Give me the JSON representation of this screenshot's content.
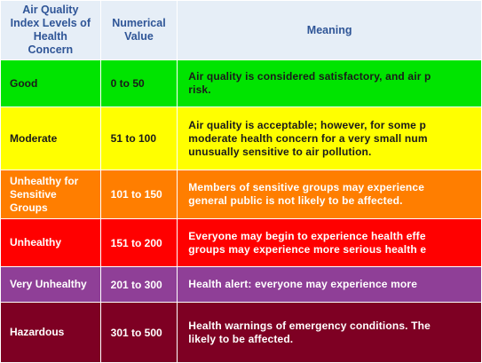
{
  "table": {
    "headers": {
      "level": "Air Quality Index Levels of Health Concern",
      "value": "Numerical Value",
      "meaning": "Meaning"
    },
    "rows": [
      {
        "level": "Good",
        "value": "0 to 50",
        "meaning": [
          "Air quality is considered satisfactory, and air p",
          "risk."
        ],
        "bg": "#00e400",
        "fg": "#1a1a1a"
      },
      {
        "level": "Moderate",
        "value": "51 to 100",
        "meaning": [
          "Air quality is acceptable; however, for some p",
          "moderate health concern for a very small num",
          "unusually sensitive to air pollution."
        ],
        "bg": "#ffff00",
        "fg": "#1a1a1a"
      },
      {
        "level": "Unhealthy for Sensitive Groups",
        "value": "101 to 150",
        "meaning": [
          "Members of sensitive groups may experience",
          "general public is not likely to be affected."
        ],
        "bg": "#ff7e00",
        "fg": "#ffffff"
      },
      {
        "level": "Unhealthy",
        "value": "151 to 200",
        "meaning": [
          "Everyone may begin to experience health effe",
          "groups may experience more serious health e"
        ],
        "bg": "#ff0000",
        "fg": "#ffffff"
      },
      {
        "level": "Very Unhealthy",
        "value": "201 to 300",
        "meaning": [
          "Health alert: everyone may experience more"
        ],
        "bg": "#8f3f97",
        "fg": "#ffffff"
      },
      {
        "level": "Hazardous",
        "value": "301 to 500",
        "meaning": [
          "Health warnings of emergency conditions. The",
          "likely to be affected."
        ],
        "bg": "#7e0023",
        "fg": "#ffffff"
      }
    ]
  }
}
